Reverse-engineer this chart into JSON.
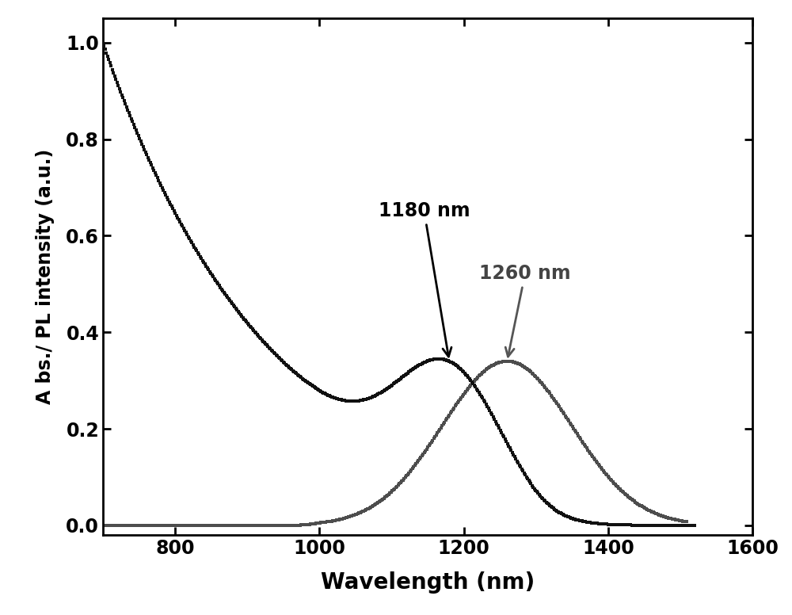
{
  "xlim": [
    700,
    1600
  ],
  "ylim": [
    -0.02,
    1.05
  ],
  "xlabel": "Wavelength (nm)",
  "ylabel": "A bs./ PL intensity (a.u.)",
  "xticks": [
    800,
    1000,
    1200,
    1400,
    1600
  ],
  "yticks": [
    0.0,
    0.2,
    0.4,
    0.6,
    0.8,
    1.0
  ],
  "abs_color": "#111111",
  "pl_color": "#4d4d4d",
  "annotation_abs": "1180 nm",
  "annotation_pl": "1260 nm",
  "xlabel_fontsize": 20,
  "ylabel_fontsize": 17,
  "tick_fontsize": 17,
  "annotation_fontsize": 17,
  "linewidth": 4.0
}
